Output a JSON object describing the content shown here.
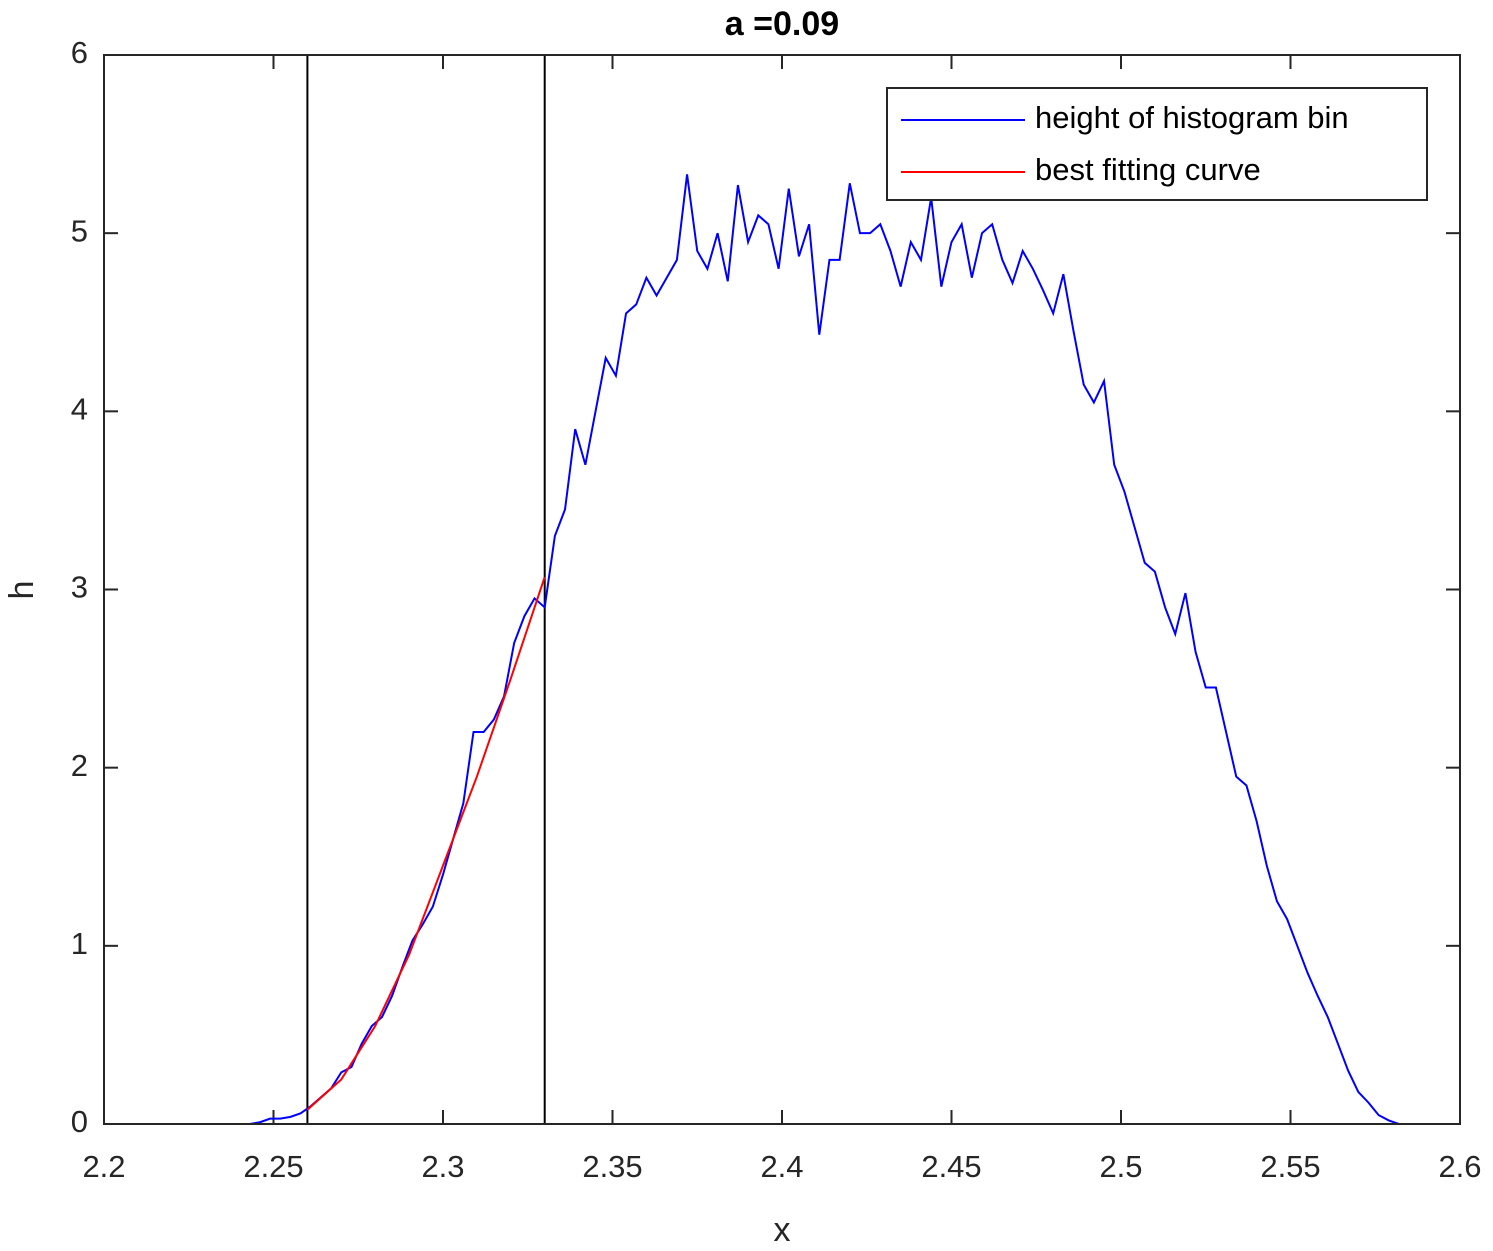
{
  "chart_data": {
    "type": "line",
    "title": "a =0.09",
    "x_label": "x",
    "y_label": "h",
    "xlim": [
      2.2,
      2.6
    ],
    "xticks": [
      2.2,
      2.25,
      2.3,
      2.35,
      2.4,
      2.45,
      2.5,
      2.55,
      2.6
    ],
    "ylim": [
      0,
      6
    ],
    "yticks": [
      0,
      1,
      2,
      3,
      4,
      5,
      6
    ],
    "grid": false,
    "legend": "upper right",
    "vlines": [
      2.26,
      2.33
    ],
    "vline_color": "#000000",
    "series": [
      {
        "name": "height of histogram bin",
        "color": "#0000ff",
        "x": [
          2.243,
          2.246,
          2.249,
          2.252,
          2.255,
          2.258,
          2.261,
          2.264,
          2.267,
          2.27,
          2.273,
          2.276,
          2.279,
          2.282,
          2.285,
          2.288,
          2.291,
          2.294,
          2.297,
          2.3,
          2.303,
          2.306,
          2.309,
          2.312,
          2.315,
          2.318,
          2.321,
          2.324,
          2.327,
          2.33,
          2.333,
          2.336,
          2.339,
          2.342,
          2.345,
          2.348,
          2.351,
          2.354,
          2.357,
          2.36,
          2.363,
          2.366,
          2.369,
          2.372,
          2.375,
          2.378,
          2.381,
          2.384,
          2.387,
          2.39,
          2.393,
          2.396,
          2.399,
          2.402,
          2.405,
          2.408,
          2.411,
          2.414,
          2.417,
          2.42,
          2.423,
          2.426,
          2.429,
          2.432,
          2.435,
          2.438,
          2.441,
          2.444,
          2.447,
          2.45,
          2.453,
          2.456,
          2.459,
          2.462,
          2.465,
          2.468,
          2.471,
          2.474,
          2.477,
          2.48,
          2.483,
          2.486,
          2.489,
          2.492,
          2.495,
          2.498,
          2.501,
          2.504,
          2.507,
          2.51,
          2.513,
          2.516,
          2.519,
          2.522,
          2.525,
          2.528,
          2.531,
          2.534,
          2.537,
          2.54,
          2.543,
          2.546,
          2.549,
          2.552,
          2.555,
          2.558,
          2.561,
          2.564,
          2.567,
          2.57,
          2.573,
          2.576,
          2.579,
          2.582
        ],
        "values": [
          0,
          0.01,
          0.03,
          0.03,
          0.04,
          0.06,
          0.1,
          0.15,
          0.2,
          0.29,
          0.32,
          0.45,
          0.55,
          0.6,
          0.72,
          0.88,
          1.03,
          1.12,
          1.22,
          1.4,
          1.6,
          1.8,
          2.2,
          2.2,
          2.27,
          2.4,
          2.7,
          2.85,
          2.95,
          2.9,
          3.3,
          3.45,
          3.9,
          3.7,
          4.0,
          4.3,
          4.2,
          4.55,
          4.6,
          4.75,
          4.65,
          4.75,
          4.85,
          5.33,
          4.9,
          4.8,
          5.0,
          4.73,
          5.27,
          4.95,
          5.1,
          5.05,
          4.8,
          5.25,
          4.87,
          5.05,
          4.43,
          4.85,
          4.85,
          5.28,
          5.0,
          5.0,
          5.05,
          4.9,
          4.7,
          4.95,
          4.85,
          5.2,
          4.7,
          4.95,
          5.05,
          4.75,
          5.0,
          5.05,
          4.85,
          4.72,
          4.9,
          4.8,
          4.68,
          4.55,
          4.77,
          4.45,
          4.15,
          4.05,
          4.17,
          3.7,
          3.55,
          3.35,
          3.15,
          3.1,
          2.9,
          2.75,
          2.98,
          2.65,
          2.45,
          2.45,
          2.2,
          1.95,
          1.9,
          1.7,
          1.45,
          1.25,
          1.15,
          1.0,
          0.85,
          0.72,
          0.6,
          0.45,
          0.3,
          0.18,
          0.12,
          0.05,
          0.02,
          0.0
        ]
      },
      {
        "name": "best fitting curve",
        "color": "#ff0000",
        "x": [
          2.26,
          2.27,
          2.28,
          2.29,
          2.3,
          2.31,
          2.32,
          2.33
        ],
        "values": [
          0.08,
          0.25,
          0.55,
          0.95,
          1.45,
          1.95,
          2.5,
          3.07
        ]
      }
    ]
  }
}
